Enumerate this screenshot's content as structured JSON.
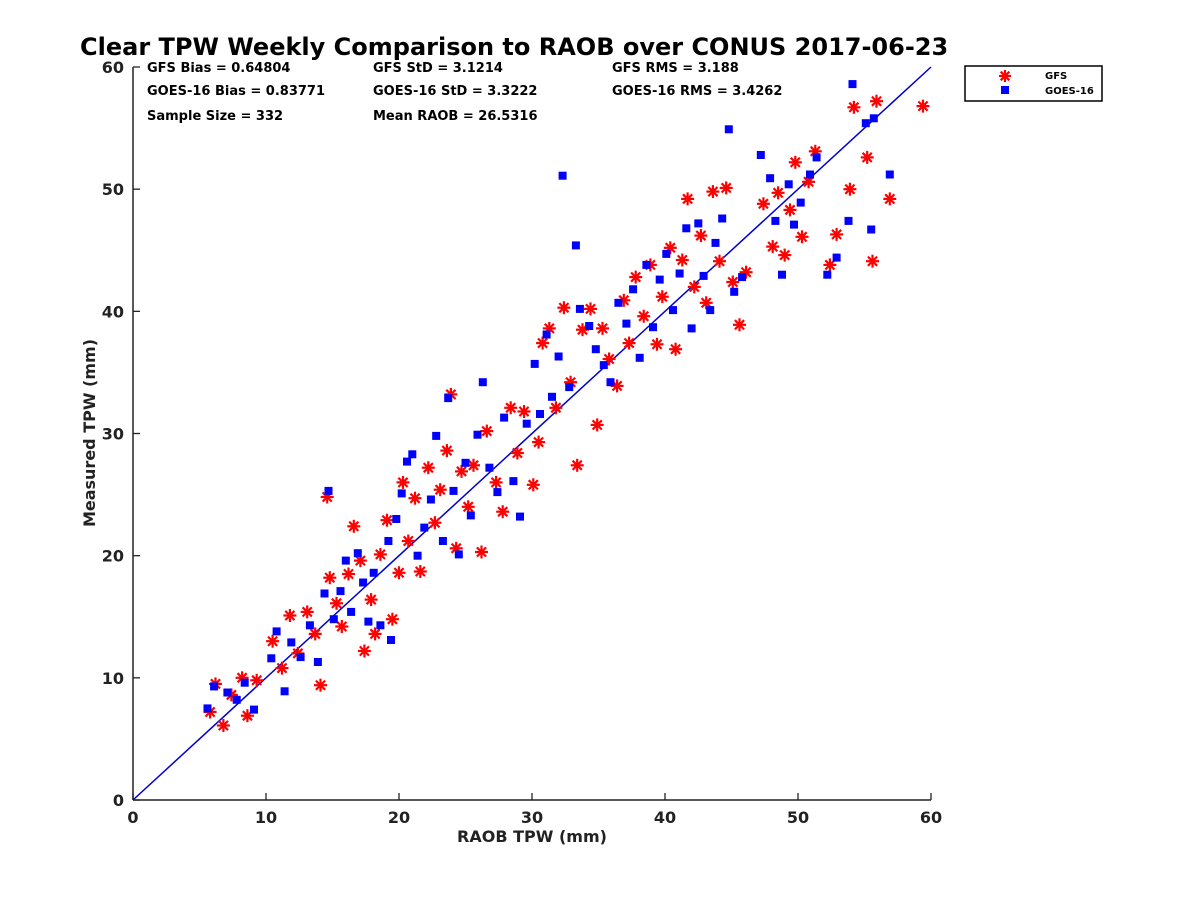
{
  "chart_data": {
    "type": "scatter",
    "title": "Clear TPW Weekly Comparison to RAOB over CONUS 2017-06-23",
    "xlabel": "RAOB TPW (mm)",
    "ylabel": "Measured TPW (mm)",
    "xlim": [
      0,
      60
    ],
    "ylim": [
      0,
      60
    ],
    "xticks": [
      0,
      10,
      20,
      30,
      40,
      50,
      60
    ],
    "yticks": [
      0,
      10,
      20,
      30,
      40,
      50,
      60
    ],
    "grid": false,
    "legend_position": "outside-top-right",
    "stats": [
      "GFS Bias = 0.64804",
      "GFS StD = 3.1214",
      "GFS RMS = 3.188",
      "GOES-16 Bias = 0.83771",
      "GOES-16 StD = 3.3222",
      "GOES-16 RMS = 3.4262",
      "Sample Size = 332",
      "Mean RAOB = 26.5316"
    ],
    "reference_line": {
      "x": [
        0,
        60
      ],
      "y": [
        0,
        60
      ],
      "color": "#0000cc"
    },
    "series": [
      {
        "name": "GFS",
        "marker": "asterisk",
        "color": "#ff0000",
        "points": [
          [
            5.8,
            7.2
          ],
          [
            6.2,
            9.5
          ],
          [
            6.8,
            6.1
          ],
          [
            7.4,
            8.6
          ],
          [
            8.2,
            10.0
          ],
          [
            8.6,
            6.9
          ],
          [
            9.3,
            9.8
          ],
          [
            10.5,
            13.0
          ],
          [
            11.2,
            10.8
          ],
          [
            11.8,
            15.1
          ],
          [
            12.4,
            12.0
          ],
          [
            13.1,
            15.4
          ],
          [
            13.7,
            13.6
          ],
          [
            14.1,
            9.4
          ],
          [
            14.6,
            24.8
          ],
          [
            14.8,
            18.2
          ],
          [
            15.3,
            16.1
          ],
          [
            15.7,
            14.2
          ],
          [
            16.2,
            18.5
          ],
          [
            16.6,
            22.4
          ],
          [
            17.1,
            19.6
          ],
          [
            17.4,
            12.2
          ],
          [
            17.9,
            16.4
          ],
          [
            18.2,
            13.6
          ],
          [
            18.6,
            20.1
          ],
          [
            19.1,
            22.9
          ],
          [
            19.5,
            14.8
          ],
          [
            20.0,
            18.6
          ],
          [
            20.3,
            26.0
          ],
          [
            20.7,
            21.2
          ],
          [
            21.2,
            24.7
          ],
          [
            21.6,
            18.7
          ],
          [
            22.2,
            27.2
          ],
          [
            22.7,
            22.7
          ],
          [
            23.1,
            25.4
          ],
          [
            23.6,
            28.6
          ],
          [
            23.9,
            33.2
          ],
          [
            24.3,
            20.6
          ],
          [
            24.7,
            26.9
          ],
          [
            25.2,
            24.0
          ],
          [
            25.6,
            27.4
          ],
          [
            26.2,
            20.3
          ],
          [
            26.6,
            30.2
          ],
          [
            27.3,
            26.0
          ],
          [
            27.8,
            23.6
          ],
          [
            28.4,
            32.1
          ],
          [
            28.9,
            28.4
          ],
          [
            29.4,
            31.8
          ],
          [
            30.1,
            25.8
          ],
          [
            30.5,
            29.3
          ],
          [
            30.8,
            37.4
          ],
          [
            31.3,
            38.6
          ],
          [
            31.8,
            32.1
          ],
          [
            32.4,
            40.3
          ],
          [
            32.9,
            34.2
          ],
          [
            33.4,
            27.4
          ],
          [
            33.8,
            38.5
          ],
          [
            34.4,
            40.2
          ],
          [
            34.9,
            30.7
          ],
          [
            35.3,
            38.6
          ],
          [
            35.8,
            36.1
          ],
          [
            36.4,
            33.9
          ],
          [
            36.9,
            40.9
          ],
          [
            37.3,
            37.4
          ],
          [
            37.8,
            42.8
          ],
          [
            38.4,
            39.6
          ],
          [
            38.9,
            43.8
          ],
          [
            39.4,
            37.3
          ],
          [
            39.8,
            41.2
          ],
          [
            40.4,
            45.2
          ],
          [
            40.8,
            36.9
          ],
          [
            41.3,
            44.2
          ],
          [
            41.7,
            49.2
          ],
          [
            42.2,
            42.0
          ],
          [
            42.7,
            46.2
          ],
          [
            43.1,
            40.7
          ],
          [
            43.6,
            49.8
          ],
          [
            44.1,
            44.1
          ],
          [
            44.6,
            50.1
          ],
          [
            45.1,
            42.4
          ],
          [
            45.6,
            38.9
          ],
          [
            46.1,
            43.2
          ],
          [
            47.4,
            48.8
          ],
          [
            48.1,
            45.3
          ],
          [
            48.5,
            49.7
          ],
          [
            49.0,
            44.6
          ],
          [
            49.4,
            48.3
          ],
          [
            49.8,
            52.2
          ],
          [
            50.3,
            46.1
          ],
          [
            50.8,
            50.6
          ],
          [
            51.3,
            53.1
          ],
          [
            52.4,
            43.8
          ],
          [
            52.9,
            46.3
          ],
          [
            53.9,
            50.0
          ],
          [
            54.2,
            56.7
          ],
          [
            55.2,
            52.6
          ],
          [
            55.6,
            44.1
          ],
          [
            55.9,
            57.2
          ],
          [
            56.9,
            49.2
          ],
          [
            59.4,
            56.8
          ]
        ]
      },
      {
        "name": "GOES-16",
        "marker": "square",
        "color": "#0000ff",
        "points": [
          [
            5.6,
            7.5
          ],
          [
            6.1,
            9.3
          ],
          [
            7.1,
            8.8
          ],
          [
            7.8,
            8.2
          ],
          [
            8.4,
            9.6
          ],
          [
            9.1,
            7.4
          ],
          [
            10.4,
            11.6
          ],
          [
            10.8,
            13.8
          ],
          [
            11.4,
            8.9
          ],
          [
            11.9,
            12.9
          ],
          [
            12.6,
            11.7
          ],
          [
            13.3,
            14.3
          ],
          [
            13.9,
            11.3
          ],
          [
            14.4,
            16.9
          ],
          [
            14.7,
            25.3
          ],
          [
            15.1,
            14.8
          ],
          [
            15.6,
            17.1
          ],
          [
            16.0,
            19.6
          ],
          [
            16.4,
            15.4
          ],
          [
            16.9,
            20.2
          ],
          [
            17.3,
            17.8
          ],
          [
            17.7,
            14.6
          ],
          [
            18.1,
            18.6
          ],
          [
            18.6,
            14.3
          ],
          [
            19.2,
            21.2
          ],
          [
            19.4,
            13.1
          ],
          [
            19.8,
            23.0
          ],
          [
            20.2,
            25.1
          ],
          [
            20.6,
            27.7
          ],
          [
            21.0,
            28.3
          ],
          [
            21.4,
            20.0
          ],
          [
            21.9,
            22.3
          ],
          [
            22.4,
            24.6
          ],
          [
            22.8,
            29.8
          ],
          [
            23.3,
            21.2
          ],
          [
            23.7,
            32.9
          ],
          [
            24.1,
            25.3
          ],
          [
            24.5,
            20.1
          ],
          [
            25.0,
            27.6
          ],
          [
            25.4,
            23.3
          ],
          [
            25.9,
            29.9
          ],
          [
            26.3,
            34.2
          ],
          [
            26.8,
            27.2
          ],
          [
            27.4,
            25.2
          ],
          [
            27.9,
            31.3
          ],
          [
            28.6,
            26.1
          ],
          [
            29.1,
            23.2
          ],
          [
            29.6,
            30.8
          ],
          [
            30.2,
            35.7
          ],
          [
            30.6,
            31.6
          ],
          [
            31.1,
            38.1
          ],
          [
            31.5,
            33.0
          ],
          [
            32.0,
            36.3
          ],
          [
            32.3,
            51.1
          ],
          [
            32.8,
            33.8
          ],
          [
            33.3,
            45.4
          ],
          [
            33.6,
            40.2
          ],
          [
            34.3,
            38.8
          ],
          [
            34.8,
            36.9
          ],
          [
            35.4,
            35.6
          ],
          [
            35.9,
            34.2
          ],
          [
            36.5,
            40.7
          ],
          [
            37.1,
            39.0
          ],
          [
            37.6,
            41.8
          ],
          [
            38.1,
            36.2
          ],
          [
            38.6,
            43.8
          ],
          [
            39.1,
            38.7
          ],
          [
            39.6,
            42.6
          ],
          [
            40.1,
            44.7
          ],
          [
            40.6,
            40.1
          ],
          [
            41.1,
            43.1
          ],
          [
            41.6,
            46.8
          ],
          [
            42.0,
            38.6
          ],
          [
            42.5,
            47.2
          ],
          [
            42.9,
            42.9
          ],
          [
            43.4,
            40.1
          ],
          [
            43.8,
            45.6
          ],
          [
            44.3,
            47.6
          ],
          [
            44.8,
            54.9
          ],
          [
            45.2,
            41.6
          ],
          [
            45.8,
            42.8
          ],
          [
            47.2,
            52.8
          ],
          [
            47.9,
            50.9
          ],
          [
            48.3,
            47.4
          ],
          [
            48.8,
            43.0
          ],
          [
            49.3,
            50.4
          ],
          [
            49.7,
            47.1
          ],
          [
            50.2,
            48.9
          ],
          [
            50.9,
            51.2
          ],
          [
            51.4,
            52.6
          ],
          [
            52.2,
            43.0
          ],
          [
            52.9,
            44.4
          ],
          [
            53.8,
            47.4
          ],
          [
            54.1,
            58.6
          ],
          [
            55.1,
            55.4
          ],
          [
            55.5,
            46.7
          ],
          [
            55.7,
            55.8
          ],
          [
            56.9,
            51.2
          ]
        ]
      }
    ]
  }
}
